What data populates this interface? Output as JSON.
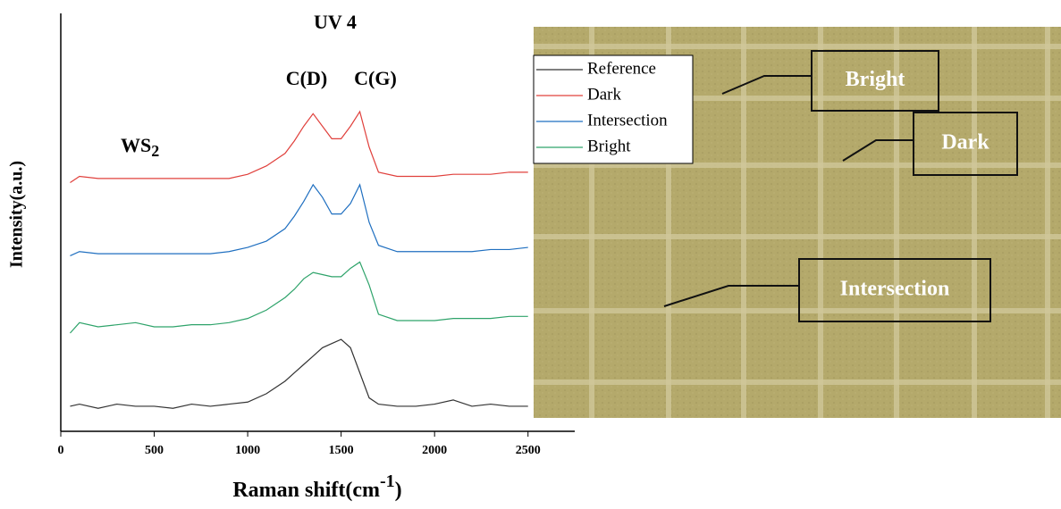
{
  "chart_data": {
    "type": "line",
    "title": "UV 4",
    "annotations": [
      "C(D)",
      "C(G)",
      {
        "text": "WS",
        "sub": "2"
      }
    ],
    "y_label": "Intensity(a.u.)",
    "x_label": {
      "text": "Raman shift(cm",
      "sup": "-1",
      "end": ")"
    },
    "x": [
      50,
      100,
      200,
      300,
      400,
      500,
      600,
      700,
      800,
      900,
      1000,
      1100,
      1200,
      1250,
      1300,
      1350,
      1400,
      1450,
      1500,
      1550,
      1600,
      1650,
      1700,
      1800,
      1900,
      2000,
      2100,
      2200,
      2300,
      2400,
      2500
    ],
    "series": [
      {
        "name": "Reference",
        "color": "#333333",
        "values": [
          6,
          6.5,
          5.5,
          6.5,
          6,
          6,
          5.5,
          6.5,
          6,
          6.5,
          7,
          9,
          12,
          14,
          16,
          18,
          20,
          21,
          22,
          20,
          14,
          8,
          6.5,
          6,
          6,
          6.5,
          7.5,
          6,
          6.5,
          6,
          6
        ]
      },
      {
        "name": "Dark",
        "color": "#e0403c",
        "values": [
          59.5,
          61,
          60.5,
          60.5,
          60.5,
          60.5,
          60.5,
          60.5,
          60.5,
          60.5,
          61.5,
          63.5,
          66.5,
          69.5,
          73,
          76,
          73,
          70,
          70,
          73,
          76.5,
          68,
          62,
          61,
          61,
          61,
          61.5,
          61.5,
          61.5,
          62,
          62
        ]
      },
      {
        "name": "Intersection",
        "color": "#1f6fc0",
        "values": [
          42,
          43,
          42.5,
          42.5,
          42.5,
          42.5,
          42.5,
          42.5,
          42.5,
          43,
          44,
          45.5,
          48.5,
          51.5,
          55,
          59,
          56,
          52,
          52,
          54.5,
          59,
          50,
          44.5,
          43,
          43,
          43,
          43,
          43,
          43.5,
          43.5,
          44
        ]
      },
      {
        "name": "Bright",
        "color": "#2ea36a",
        "values": [
          23.5,
          26,
          25,
          25.5,
          26,
          25,
          25,
          25.5,
          25.5,
          26,
          27,
          29,
          32,
          34,
          36.5,
          38,
          37.5,
          37,
          37,
          39,
          40.5,
          35,
          28,
          26.5,
          26.5,
          26.5,
          27,
          27,
          27,
          27.5,
          27.5
        ]
      }
    ],
    "xlim": [
      0,
      2750
    ],
    "xticks": [
      0,
      500,
      1000,
      1500,
      2000,
      2500
    ],
    "ylim": [
      0,
      100
    ],
    "legend": "top-right"
  },
  "image": {
    "labels": [
      "Bright",
      "Dark",
      "Intersection"
    ]
  }
}
